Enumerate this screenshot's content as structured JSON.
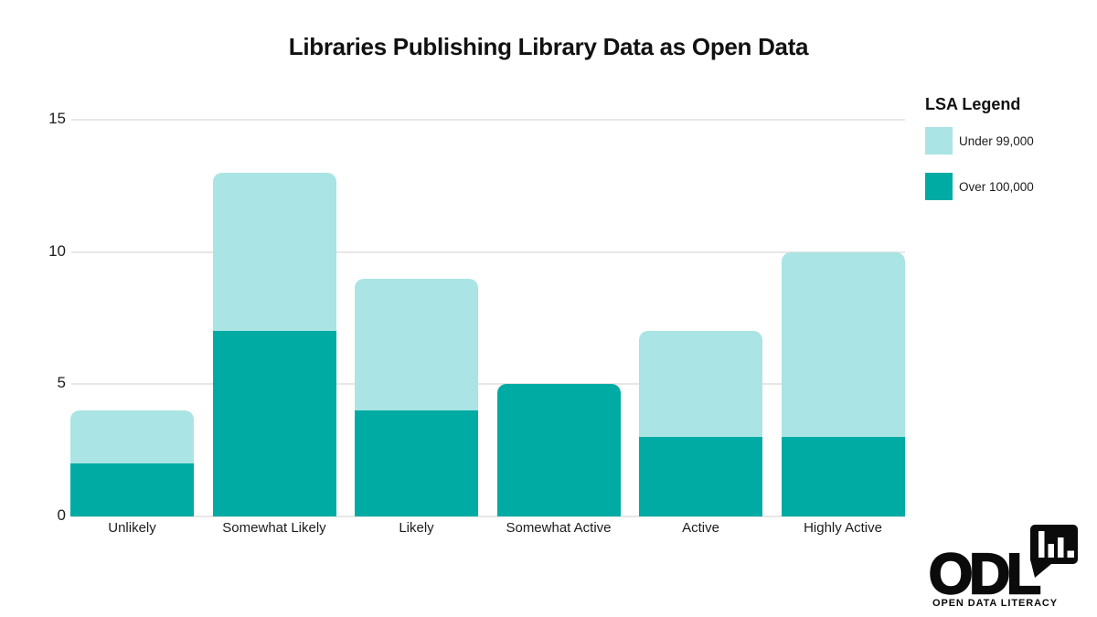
{
  "chart_data": {
    "type": "bar",
    "stacked": true,
    "title": "Libraries Publishing Library Data as Open Data",
    "categories": [
      "Unlikely",
      "Somewhat Likely",
      "Likely",
      "Somewhat Active",
      "Active",
      "Highly Active"
    ],
    "series": [
      {
        "name": "Over 100,000",
        "color": "#00aba4",
        "values": [
          2,
          7,
          4,
          5,
          3,
          3
        ]
      },
      {
        "name": "Under 99,000",
        "color": "#aae4e4",
        "values": [
          2,
          6,
          5,
          0,
          4,
          7
        ]
      }
    ],
    "totals": [
      4,
      13,
      9,
      5,
      7,
      10
    ],
    "xlabel": "",
    "ylabel": "",
    "ylim": [
      0,
      15
    ],
    "yticks": [
      0,
      5,
      10,
      15
    ],
    "grid": "horizontal",
    "gridline_color": "#e7e7e7",
    "legend_position": "right"
  },
  "legend": {
    "title": "LSA Legend",
    "items": [
      {
        "label": "Under 99,000",
        "color": "#aae4e4"
      },
      {
        "label": "Over 100,000",
        "color": "#00aba4"
      }
    ]
  },
  "logo": {
    "text": "ODL",
    "subtext": "OPEN DATA LITERACY",
    "icon": "speech-bubble-bar-chart-icon"
  }
}
